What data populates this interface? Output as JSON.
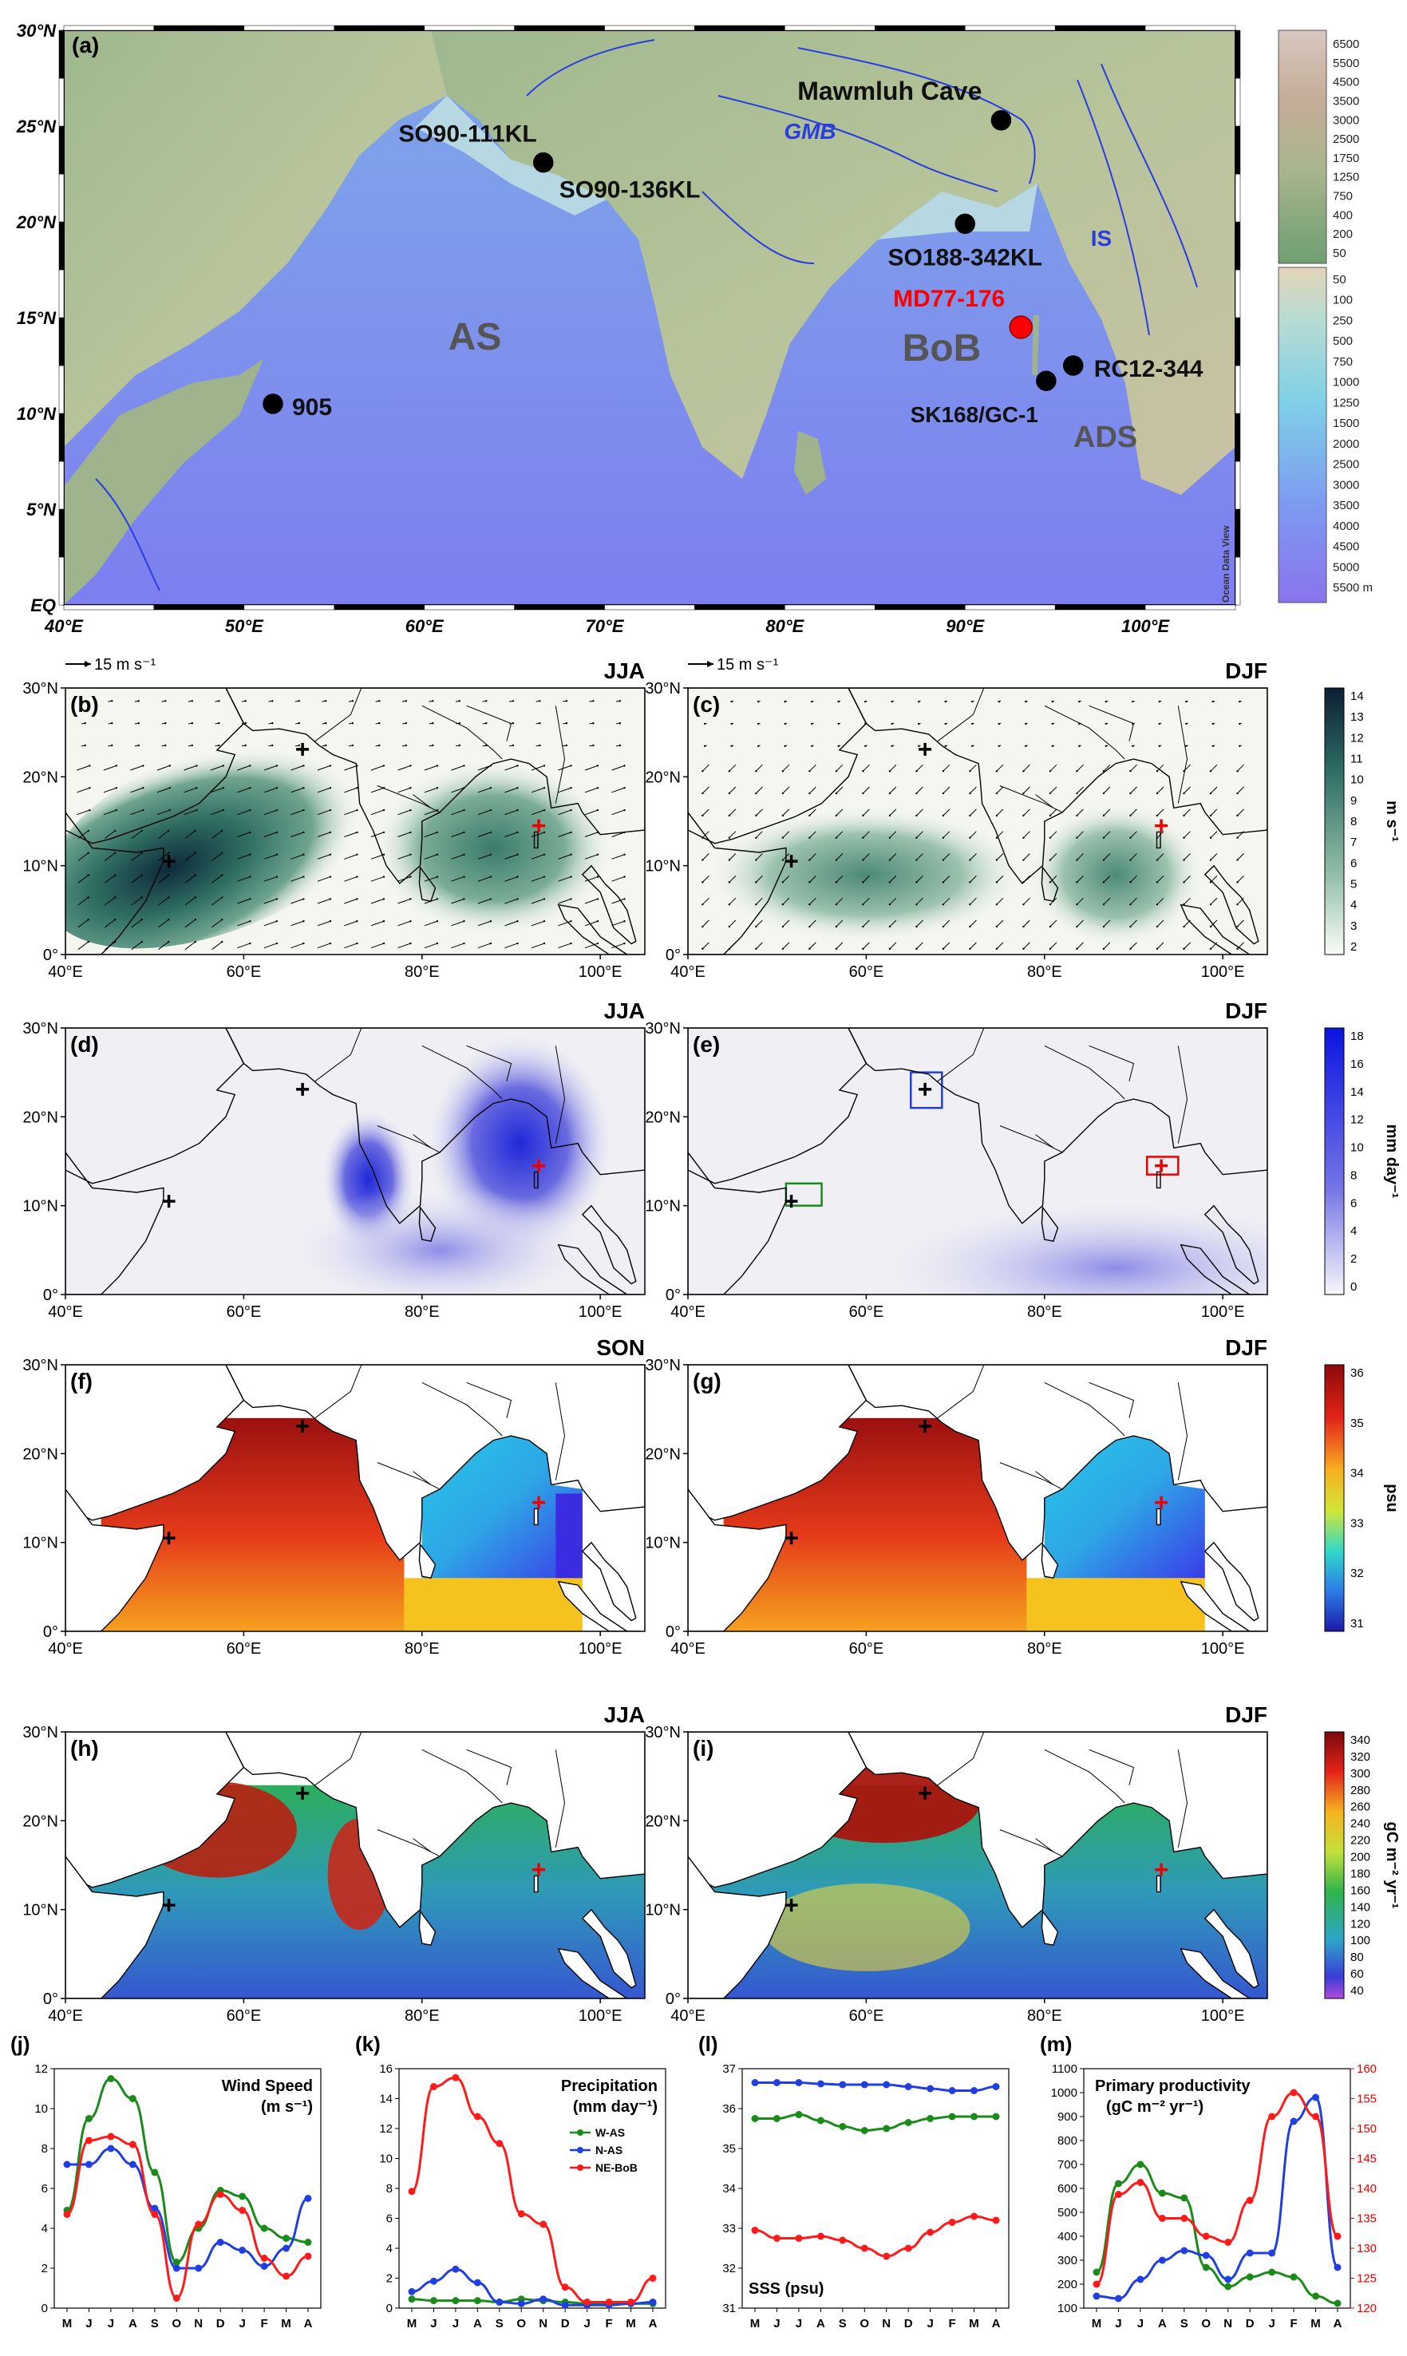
{
  "panel_a": {
    "label": "(a)",
    "lat_ticks": [
      "30°N",
      "25°N",
      "20°N",
      "15°N",
      "10°N",
      "5°N",
      "EQ"
    ],
    "lon_ticks": [
      "40°E",
      "50°E",
      "60°E",
      "70°E",
      "80°E",
      "90°E",
      "100°E"
    ],
    "sites": [
      {
        "name": "Mawmluh Cave",
        "lon": 92.0,
        "lat": 25.3,
        "color": "#000000"
      },
      {
        "name": "SO90-111KL",
        "lon": 66.6,
        "lat": 23.1,
        "color": "#000000"
      },
      {
        "name": "SO90-136KL",
        "lon": 66.6,
        "lat": 23.1,
        "color": "#000000"
      },
      {
        "name": "SO188-342KL",
        "lon": 90.0,
        "lat": 19.9,
        "color": "#000000"
      },
      {
        "name": "MD77-176",
        "lon": 93.1,
        "lat": 14.5,
        "color": "#ff0000"
      },
      {
        "name": "RC12-344",
        "lon": 96.0,
        "lat": 12.5,
        "color": "#000000"
      },
      {
        "name": "SK168/GC-1",
        "lon": 94.5,
        "lat": 11.7,
        "color": "#000000"
      },
      {
        "name": "905",
        "lon": 51.6,
        "lat": 10.5,
        "color": "#000000"
      }
    ],
    "regions": [
      "AS",
      "BoB",
      "ADS"
    ],
    "rivers": [
      "GMB",
      "IS"
    ],
    "elev_ticks": [
      "6500",
      "5500",
      "4500",
      "3500",
      "3000",
      "2500",
      "1750",
      "1250",
      "750",
      "400",
      "200",
      "50"
    ],
    "depth_ticks": [
      "50",
      "100",
      "250",
      "500",
      "750",
      "1000",
      "1250",
      "1500",
      "2000",
      "2500",
      "3000",
      "3500",
      "4000",
      "4500",
      "5000",
      "5500 m"
    ],
    "watermark": "Ocean Data View"
  },
  "maps": [
    {
      "id": "b",
      "label": "(b)",
      "season": "JJA",
      "field": "wind"
    },
    {
      "id": "c",
      "label": "(c)",
      "season": "DJF",
      "field": "wind"
    },
    {
      "id": "d",
      "label": "(d)",
      "season": "JJA",
      "field": "precip"
    },
    {
      "id": "e",
      "label": "(e)",
      "season": "DJF",
      "field": "precip"
    },
    {
      "id": "f",
      "label": "(f)",
      "season": "SON",
      "field": "sss"
    },
    {
      "id": "g",
      "label": "(g)",
      "season": "DJF",
      "field": "sss"
    },
    {
      "id": "h",
      "label": "(h)",
      "season": "JJA",
      "field": "pp"
    },
    {
      "id": "i",
      "label": "(i)",
      "season": "DJF",
      "field": "pp"
    }
  ],
  "map_axes": {
    "lat_ticks": [
      "30°N",
      "20°N",
      "10°N",
      "0°"
    ],
    "lon_ticks": [
      "40°E",
      "60°E",
      "80°E",
      "100°E"
    ]
  },
  "wind_scale": "15 m s⁻¹",
  "colorbars": {
    "wind": {
      "unit": "m s⁻¹",
      "ticks": [
        "14",
        "13",
        "12",
        "11",
        "10",
        "9",
        "8",
        "7",
        "6",
        "5",
        "4",
        "3",
        "2"
      ]
    },
    "precip": {
      "unit": "mm day⁻¹",
      "ticks": [
        "18",
        "16",
        "14",
        "12",
        "10",
        "8",
        "6",
        "4",
        "2",
        "0"
      ]
    },
    "sss": {
      "unit": "psu",
      "ticks": [
        "36",
        "35",
        "34",
        "33",
        "32",
        "31"
      ]
    },
    "pp": {
      "unit": "gC m⁻² yr⁻¹",
      "ticks": [
        "340",
        "320",
        "300",
        "280",
        "260",
        "240",
        "220",
        "200",
        "180",
        "160",
        "140",
        "120",
        "100",
        "80",
        "60",
        "40"
      ]
    }
  },
  "chart_data": [
    {
      "type": "line",
      "label": "(j)",
      "title": "Wind Speed",
      "ylabel": "(m s⁻¹)",
      "categories": [
        "M",
        "J",
        "J",
        "A",
        "S",
        "O",
        "N",
        "D",
        "J",
        "F",
        "M",
        "A"
      ],
      "ylim": [
        0,
        12
      ],
      "yticks": [
        0,
        2,
        4,
        6,
        8,
        10,
        12
      ],
      "series": [
        {
          "color": "#1a8a1a",
          "values": [
            4.9,
            9.5,
            11.5,
            10.5,
            6.8,
            2.3,
            4.0,
            5.9,
            5.6,
            4.0,
            3.5,
            3.3
          ]
        },
        {
          "color": "#1f3fe0",
          "values": [
            7.2,
            7.2,
            8.0,
            7.2,
            5.0,
            2.0,
            2.0,
            3.3,
            2.9,
            2.1,
            3.0,
            5.5
          ]
        },
        {
          "color": "#ff1a1a",
          "values": [
            4.7,
            8.4,
            8.6,
            8.2,
            4.7,
            0.5,
            4.2,
            5.7,
            4.9,
            2.5,
            1.6,
            2.6
          ]
        }
      ]
    },
    {
      "type": "line",
      "label": "(k)",
      "title": "Precipitation",
      "ylabel": "(mm day⁻¹)",
      "categories": [
        "M",
        "J",
        "J",
        "A",
        "S",
        "O",
        "N",
        "D",
        "J",
        "F",
        "M",
        "A"
      ],
      "ylim": [
        0,
        16
      ],
      "yticks": [
        0,
        2,
        4,
        6,
        8,
        10,
        12,
        14,
        16
      ],
      "legend": [
        "W-AS",
        "N-AS",
        "NE-BoB"
      ],
      "series": [
        {
          "name": "W-AS",
          "color": "#1a8a1a",
          "values": [
            0.6,
            0.5,
            0.5,
            0.5,
            0.4,
            0.6,
            0.5,
            0.4,
            0.3,
            0.3,
            0.3,
            0.3
          ]
        },
        {
          "name": "N-AS",
          "color": "#1f3fe0",
          "values": [
            1.1,
            1.8,
            2.6,
            1.7,
            0.4,
            0.3,
            0.6,
            0.2,
            0.2,
            0.2,
            0.3,
            0.4
          ]
        },
        {
          "name": "NE-BoB",
          "color": "#ff1a1a",
          "values": [
            7.8,
            14.8,
            15.4,
            12.8,
            11.0,
            6.3,
            5.6,
            1.4,
            0.4,
            0.4,
            0.4,
            2.0
          ]
        }
      ]
    },
    {
      "type": "line",
      "label": "(l)",
      "title": "SSS (psu)",
      "categories": [
        "M",
        "J",
        "J",
        "A",
        "S",
        "O",
        "N",
        "D",
        "J",
        "F",
        "M",
        "A"
      ],
      "ylim": [
        31,
        37
      ],
      "yticks": [
        31,
        32,
        33,
        34,
        35,
        36,
        37
      ],
      "series": [
        {
          "color": "#1a8a1a",
          "values": [
            35.75,
            35.75,
            35.85,
            35.7,
            35.55,
            35.45,
            35.5,
            35.65,
            35.75,
            35.8,
            35.8,
            35.8
          ]
        },
        {
          "color": "#1f3fe0",
          "values": [
            36.65,
            36.65,
            36.65,
            36.62,
            36.6,
            36.6,
            36.6,
            36.55,
            36.5,
            36.45,
            36.45,
            36.55
          ]
        },
        {
          "color": "#ff1a1a",
          "values": [
            32.95,
            32.75,
            32.75,
            32.8,
            32.7,
            32.5,
            32.3,
            32.5,
            32.9,
            33.15,
            33.3,
            33.2
          ]
        }
      ]
    },
    {
      "type": "line",
      "label": "(m)",
      "title": "Primary productivity",
      "ylabel": "(gC m⁻² yr⁻¹)",
      "categories": [
        "M",
        "J",
        "J",
        "A",
        "S",
        "O",
        "N",
        "D",
        "J",
        "F",
        "M",
        "A"
      ],
      "ylim": [
        100,
        1100
      ],
      "yticks": [
        100,
        200,
        300,
        400,
        500,
        600,
        700,
        800,
        900,
        1000,
        1100
      ],
      "ylim_right": [
        120,
        160
      ],
      "yticks_right": [
        120,
        125,
        130,
        135,
        140,
        145,
        150,
        155,
        160
      ],
      "series": [
        {
          "color": "#1a8a1a",
          "axis": "left",
          "values": [
            250,
            620,
            700,
            580,
            560,
            270,
            190,
            230,
            250,
            230,
            150,
            120
          ]
        },
        {
          "color": "#1f3fe0",
          "axis": "left",
          "values": [
            150,
            140,
            220,
            300,
            340,
            320,
            220,
            330,
            330,
            880,
            980,
            270
          ]
        },
        {
          "color": "#ff1a1a",
          "axis": "right",
          "values": [
            124,
            139,
            141,
            135,
            135,
            132,
            131,
            138,
            152,
            156,
            152,
            132
          ]
        }
      ]
    }
  ]
}
